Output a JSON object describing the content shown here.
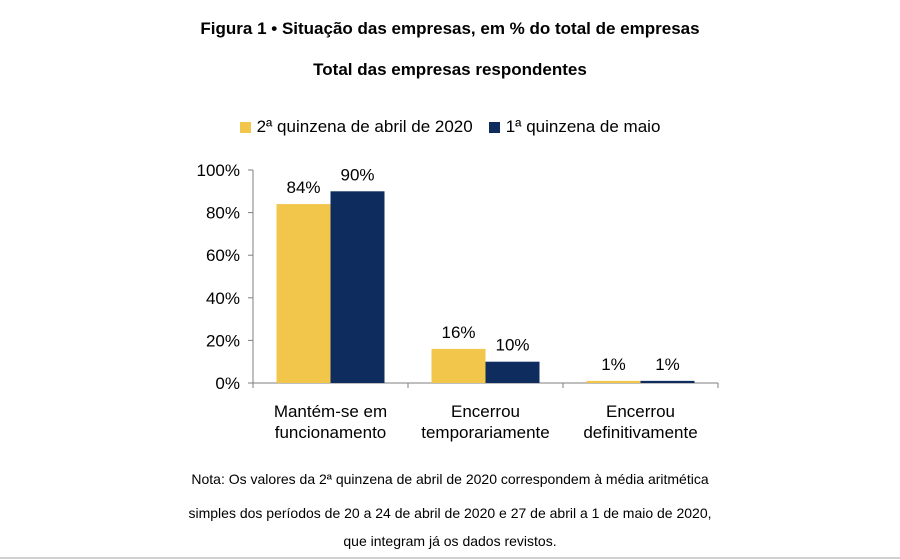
{
  "figure": {
    "title": "Figura 1 • Situação das empresas, em % do total de empresas",
    "subtitle": "Total das empresas respondentes"
  },
  "legend": [
    {
      "label": "2ª quinzena de abril de 2020",
      "color": "#F2C54B"
    },
    {
      "label": "1ª quinzena de maio",
      "color": "#0E2D5E"
    }
  ],
  "chart_data": {
    "type": "bar",
    "title": "Total das empresas respondentes",
    "categories": [
      [
        "Mantém-se em",
        "funcionamento"
      ],
      [
        "Encerrou",
        "temporariamente"
      ],
      [
        "Encerrou",
        "definitivamente"
      ]
    ],
    "series": [
      {
        "name": "2ª quinzena de abril de 2020",
        "values": [
          84,
          16,
          1
        ],
        "labels": [
          "84%",
          "16%",
          "1%"
        ],
        "color": "#F2C54B"
      },
      {
        "name": "1ª quinzena de maio",
        "values": [
          90,
          10,
          1
        ],
        "labels": [
          "90%",
          "10%",
          "1%"
        ],
        "color": "#0E2D5E"
      }
    ],
    "ylim": [
      0,
      100
    ],
    "yticks": [
      "0%",
      "20%",
      "40%",
      "60%",
      "80%",
      "100%"
    ],
    "xlabel": "",
    "ylabel": "",
    "grid": false,
    "legend_position": "top"
  },
  "note": {
    "line1": "Nota: Os valores da 2ª quinzena de abril de 2020 correspondem à média aritmética",
    "line2": "simples dos períodos de 20 a 24 de abril de 2020 e 27 de abril a 1 de maio de 2020,",
    "line3": "que integram já os dados revistos."
  }
}
